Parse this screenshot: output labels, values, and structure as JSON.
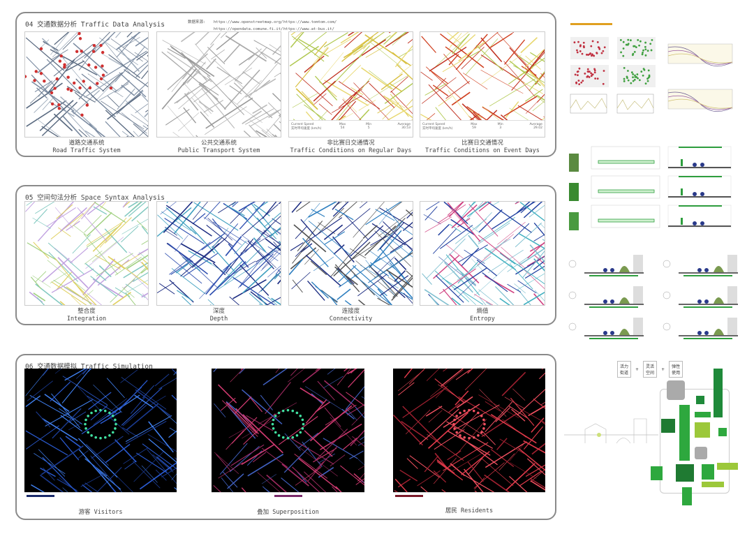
{
  "section04": {
    "title": "04 交通数据分析 Traffic Data Analysis",
    "sources_label": "数据来源:",
    "sources": [
      "https://www.openstreetmap.org/",
      "https://www.tomtom.com/",
      "https://opendata.comune.fi.it/",
      "https://www.at-bus.it/"
    ],
    "maps": [
      {
        "zh": "道路交通系统",
        "en": "Road Traffic System"
      },
      {
        "zh": "公共交通系统",
        "en": "Public Transport System"
      },
      {
        "zh": "非比赛日交通情况",
        "en": "Traffic Conditions on Regular Days"
      },
      {
        "zh": "比赛日交通情况",
        "en": "Traffic Conditions on Event Days"
      }
    ],
    "speed_tables": [
      {
        "label_en": "Current Speed",
        "label_zh": "实时平均速度 (km/h)",
        "headers": [
          "Max",
          "Min",
          "Average"
        ],
        "values": [
          "54",
          "5",
          "30.53"
        ]
      },
      {
        "label_en": "Current Speed",
        "label_zh": "实时平均速度 (km/h)",
        "headers": [
          "Max",
          "Min",
          "Average"
        ],
        "values": [
          "59",
          "3",
          "29.02"
        ]
      }
    ]
  },
  "section05": {
    "title": "05 空间句法分析 Space Syntax Analysis",
    "maps": [
      {
        "zh": "整合度",
        "en": "Integration"
      },
      {
        "zh": "深度",
        "en": "Depth"
      },
      {
        "zh": "连接度",
        "en": "Connectivity"
      },
      {
        "zh": "熵值",
        "en": "Entropy"
      }
    ]
  },
  "section06": {
    "title": "06 交通数据模拟 Traffic Simulation",
    "maps": [
      {
        "caption": "游客 Visitors",
        "color": "#3a6fd8"
      },
      {
        "caption": "叠加 Superposition",
        "color": "#d83a6a"
      },
      {
        "caption": "居民 Residents",
        "color": "#e83a4a"
      }
    ]
  },
  "diagram": {
    "formula": [
      "活力\n街道",
      "+",
      "灵活\n空间",
      "+",
      "弹性\n使用"
    ]
  },
  "colors": {
    "green": "#2e9e3e",
    "dark_green": "#1f7a32",
    "light_green": "#9cc83a",
    "grey": "#aaaaaa",
    "orange_title": "#e0a020"
  }
}
